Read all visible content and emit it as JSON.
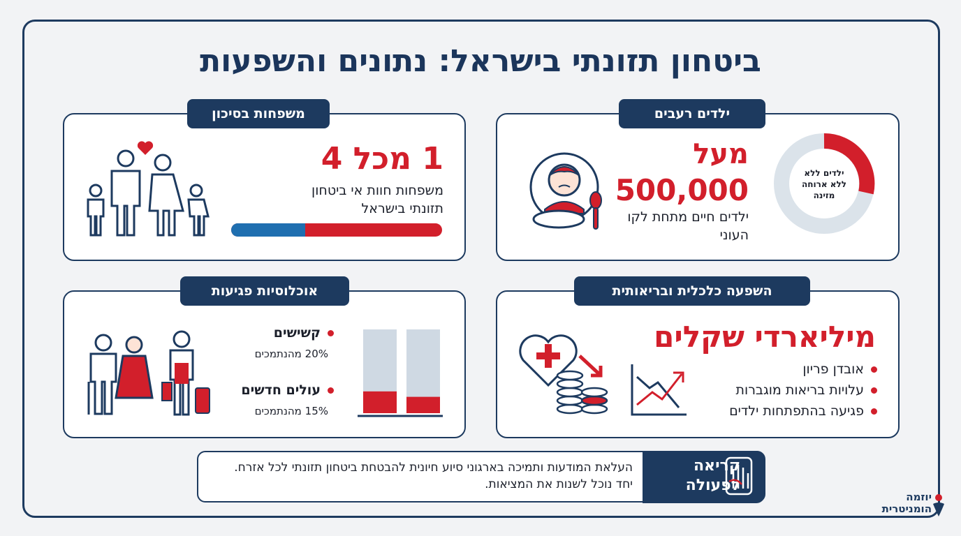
{
  "title": "ביטחון תזונתי בישראל: נתונים והשפעות",
  "cards": {
    "families": {
      "tab": "משפחות בסיכון",
      "headline": "1 מכל 4",
      "text": "משפחות חוות אי ביטחון תזונתי בישראל"
    },
    "children": {
      "tab": "ילדים רעבים",
      "headline_prefix": "מעל",
      "headline": "500,000",
      "text": "ילדים חיים מתחת לקו העוני",
      "donut_label": "ילדים ללא ללא ארוחה מזינה"
    },
    "populations": {
      "tab": "אוכלוסיות פגיעות",
      "items": [
        {
          "name": "קשישים",
          "value": 20,
          "label": "20% מהנתמכים"
        },
        {
          "name": "עולים חדשים",
          "value": 15,
          "label": "15% מהנתמכים"
        }
      ]
    },
    "impact": {
      "tab": "השפעה כלכלית ובריאותית",
      "headline": "מיליארדי שקלים",
      "items": [
        "אובדן פריון",
        "עלויות בריאות מוגברות",
        "פגיעה בהתפתחות ילדים"
      ]
    }
  },
  "cta": {
    "title": "קריאה לפעולה",
    "text": "העלאת המודעות ותמיכה בארגוני סיוע חיונית להבטחת ביטחון תזונתי לכל אזרח. יחד נוכל לשנות את המציאות."
  },
  "logo": "יוזמה הומניטרית"
}
